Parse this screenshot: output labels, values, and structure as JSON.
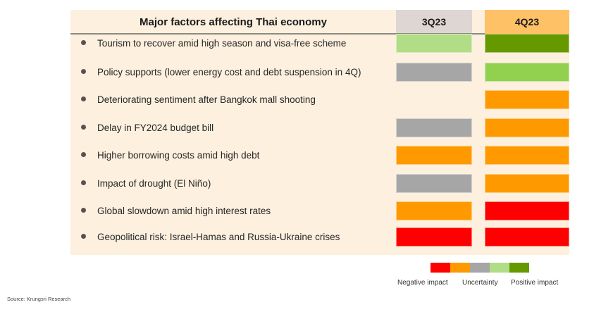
{
  "title": "Major factors affecting Thai economy",
  "columns": [
    "3Q23",
    "4Q23"
  ],
  "colors": {
    "negative": "#ff0000",
    "negative_moderate": "#ff9900",
    "uncertainty": "#a6a6a6",
    "positive_moderate": "#b0dd85",
    "positive": "#669900",
    "positive_medium": "#92d050",
    "panel_bg": "#fdf0df",
    "header_3q23": "#ded6d3",
    "header_4q23": "#ffc165"
  },
  "factors": [
    {
      "label": "Tourism to recover amid high season and visa-free scheme",
      "q3": "positive_moderate",
      "q4": "positive"
    },
    {
      "label": "Policy supports (lower energy cost and debt suspension in 4Q)",
      "q3": "uncertainty",
      "q4": "positive_medium"
    },
    {
      "label": "Deteriorating sentiment after Bangkok mall shooting",
      "q3": null,
      "q4": "negative_moderate"
    },
    {
      "label": "Delay in FY2024 budget bill",
      "q3": "uncertainty",
      "q4": "negative_moderate"
    },
    {
      "label": "Higher borrowing costs amid high debt",
      "q3": "negative_moderate",
      "q4": "negative_moderate"
    },
    {
      "label": "Impact of drought (El Niño)",
      "q3": "uncertainty",
      "q4": "negative_moderate"
    },
    {
      "label": "Global slowdown amid high interest rates",
      "q3": "negative_moderate",
      "q4": "negative"
    },
    {
      "label": "Geopolitical risk: Israel-Hamas and Russia-Ukraine crises",
      "q3": "negative",
      "q4": "negative"
    }
  ],
  "legend": {
    "swatches": [
      "#ff0000",
      "#ff9900",
      "#a6a6a6",
      "#b0dd85",
      "#669900"
    ],
    "labels": [
      "Negative impact",
      "Uncertainty",
      "Positive impact"
    ]
  },
  "source": "Source: Krungsri Research"
}
